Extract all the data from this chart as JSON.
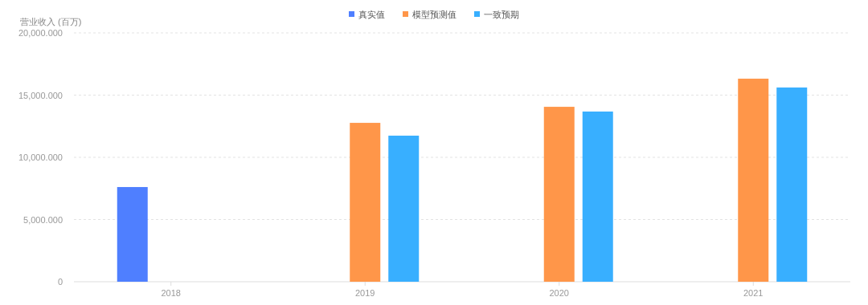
{
  "chart_data": {
    "type": "bar",
    "ylabel": "营业收入 (百万)",
    "categories": [
      "2018",
      "2019",
      "2020",
      "2021"
    ],
    "series": [
      {
        "name": "真实值",
        "color": "#4f7fff",
        "values": [
          7610,
          null,
          null,
          null
        ]
      },
      {
        "name": "模型预测值",
        "color": "#ff9649",
        "values": [
          null,
          12770,
          14060,
          16320
        ]
      },
      {
        "name": "一致预期",
        "color": "#38afff",
        "values": [
          null,
          11740,
          13680,
          15610
        ]
      }
    ],
    "ylim": [
      0,
      20000
    ],
    "yticks": [
      0,
      {
        "value": 5000,
        "label": "5,000.000"
      },
      {
        "value": 10000,
        "label": "10,000.000"
      },
      {
        "value": 15000,
        "label": "15,000.000"
      },
      {
        "value": 20000,
        "label": "20,000.000"
      }
    ],
    "grid": "y",
    "legend": "top"
  }
}
